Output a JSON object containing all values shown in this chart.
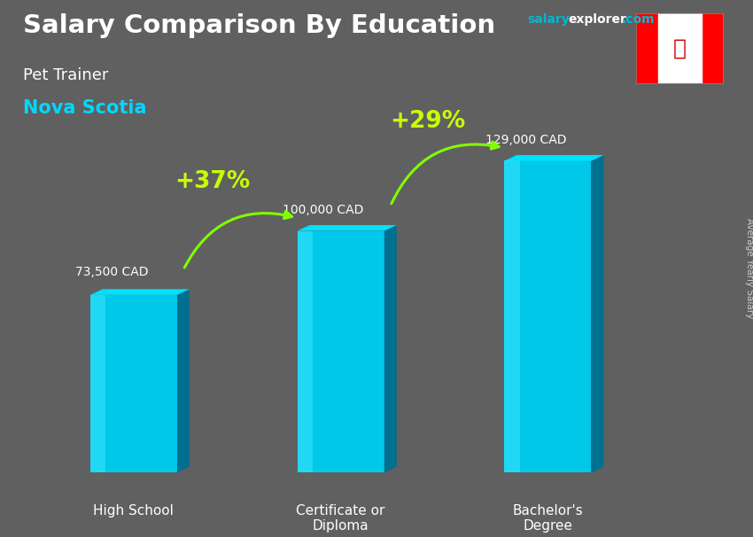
{
  "title_main": "Salary Comparison By Education",
  "title_sub": "Pet Trainer",
  "title_location": "Nova Scotia",
  "ylabel": "Average Yearly Salary",
  "categories": [
    "High School",
    "Certificate or\nDiploma",
    "Bachelor's\nDegree"
  ],
  "values": [
    73500,
    100000,
    129000
  ],
  "value_labels": [
    "73,500 CAD",
    "100,000 CAD",
    "129,000 CAD"
  ],
  "pct_labels": [
    "+37%",
    "+29%"
  ],
  "bar_front_color": "#00c8e8",
  "bar_side_color": "#007090",
  "bar_top_color": "#00e0ff",
  "bg_color": "#606060",
  "title_color": "#ffffff",
  "subtitle_color": "#ffffff",
  "location_color": "#00d8ff",
  "value_label_color": "#ffffff",
  "pct_color": "#c8ff00",
  "arrow_color": "#80ff00",
  "watermark_salary_color": "#00b8d4",
  "watermark_explorer_color": "#ffffff",
  "watermark_com_color": "#00b8d4",
  "ylim": [
    0,
    160000
  ],
  "bar_width": 0.42,
  "bar_positions": [
    0.5,
    1.5,
    2.5
  ],
  "xlim": [
    0,
    3.2
  ]
}
